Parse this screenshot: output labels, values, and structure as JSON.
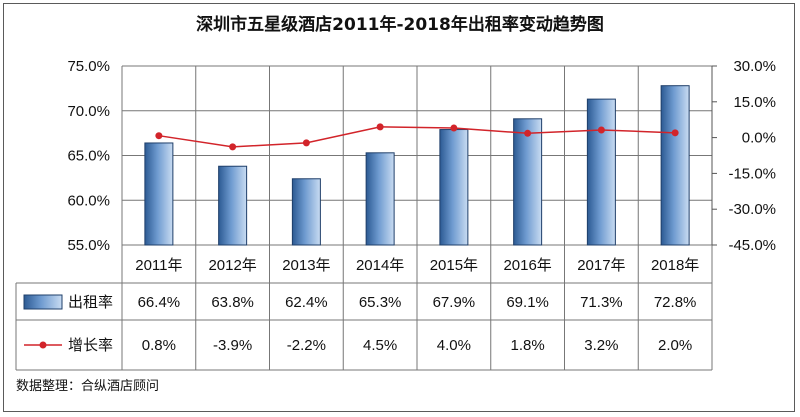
{
  "chart_data": {
    "type": "bar",
    "title": "深圳市五星级酒店2011年-2018年出租率变动趋势图",
    "categories": [
      "2011年",
      "2012年",
      "2013年",
      "2014年",
      "2015年",
      "2016年",
      "2017年",
      "2018年"
    ],
    "series": [
      {
        "name": "出租率",
        "type": "bar",
        "axis": "left",
        "values": [
          66.4,
          63.8,
          62.4,
          65.3,
          67.9,
          69.1,
          71.3,
          72.8
        ],
        "labels": [
          "66.4%",
          "63.8%",
          "62.4%",
          "65.3%",
          "67.9%",
          "69.1%",
          "71.3%",
          "72.8%"
        ],
        "color": "#3f6fa8"
      },
      {
        "name": "增长率",
        "type": "line",
        "axis": "right",
        "values": [
          0.8,
          -3.9,
          -2.2,
          4.5,
          4.0,
          1.8,
          3.2,
          2.0
        ],
        "labels": [
          "0.8%",
          "-3.9%",
          "-2.2%",
          "4.5%",
          "4.0%",
          "1.8%",
          "3.2%",
          "2.0%"
        ],
        "color": "#d2242a"
      }
    ],
    "y_left": {
      "range": [
        55,
        75
      ],
      "ticks": [
        75,
        70,
        65,
        60,
        55
      ],
      "tick_labels": [
        "75.0%",
        "70.0%",
        "65.0%",
        "60.0%",
        "55.0%"
      ]
    },
    "y_right": {
      "range": [
        -45,
        30
      ],
      "ticks": [
        30,
        15,
        0,
        -15,
        -30,
        -45
      ],
      "tick_labels": [
        "30.0%",
        "15.0%",
        "0.0%",
        "-15.0%",
        "-30.0%",
        "-45.0%"
      ]
    },
    "grid": true,
    "legend": "data-table-left",
    "source": "数据整理：合纵酒店顾问"
  }
}
